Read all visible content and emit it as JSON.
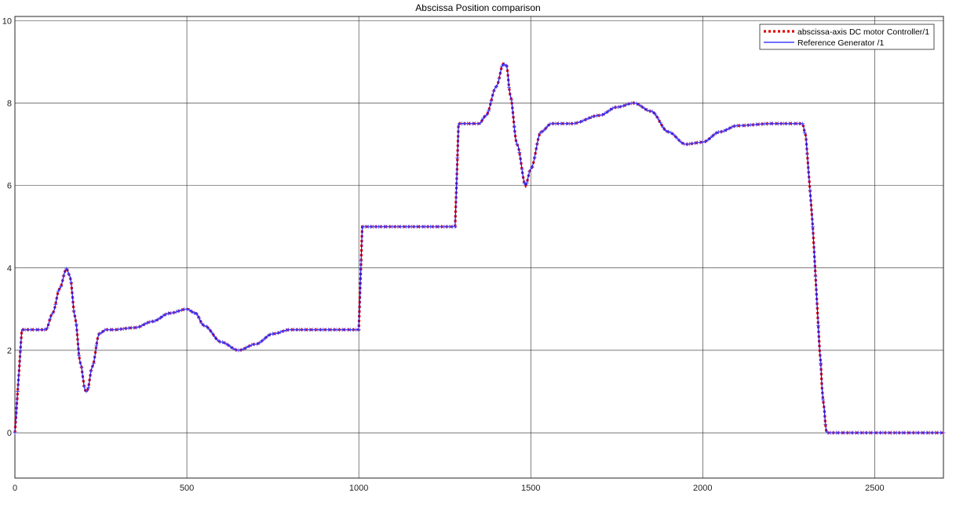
{
  "chart_data": {
    "type": "line",
    "title": "Abscissa Position comparison",
    "xlabel": "",
    "ylabel": "",
    "xlim": [
      0,
      2700
    ],
    "ylim": [
      -1.1,
      10.1
    ],
    "x_ticks": [
      0,
      500,
      1000,
      1500,
      2000,
      2500
    ],
    "y_ticks": [
      0,
      2,
      4,
      6,
      8,
      10
    ],
    "grid": true,
    "legend_position": "top-right",
    "series": [
      {
        "name": "abscissa-axis DC motor Controller/1",
        "style": "dotted",
        "color": "#e00000",
        "marker": "none",
        "x": [
          0,
          20,
          30,
          90,
          110,
          130,
          150,
          160,
          175,
          190,
          205,
          210,
          225,
          245,
          265,
          285,
          350,
          400,
          450,
          500,
          525,
          550,
          600,
          650,
          700,
          750,
          800,
          850,
          900,
          1000,
          1010,
          1020,
          1050,
          1280,
          1290,
          1300,
          1350,
          1370,
          1400,
          1420,
          1430,
          1440,
          1460,
          1485,
          1500,
          1530,
          1560,
          1620,
          1700,
          1750,
          1800,
          1850,
          1900,
          1950,
          2000,
          2050,
          2100,
          2200,
          2290,
          2300,
          2320,
          2340,
          2350,
          2360,
          2400,
          2700
        ],
        "y": [
          0,
          2.5,
          2.5,
          2.5,
          2.9,
          3.5,
          3.98,
          3.8,
          2.8,
          1.7,
          1.02,
          1.0,
          1.6,
          2.4,
          2.5,
          2.5,
          2.55,
          2.7,
          2.9,
          3.0,
          2.9,
          2.6,
          2.2,
          2.0,
          2.15,
          2.4,
          2.5,
          2.5,
          2.5,
          2.5,
          5.0,
          5.0,
          5.0,
          5.0,
          7.5,
          7.5,
          7.5,
          7.7,
          8.4,
          8.95,
          8.9,
          8.2,
          7.0,
          6.0,
          6.4,
          7.3,
          7.5,
          7.5,
          7.7,
          7.9,
          8.0,
          7.8,
          7.3,
          7.0,
          7.05,
          7.3,
          7.45,
          7.5,
          7.5,
          7.2,
          5.0,
          2.0,
          0.8,
          0.0,
          0.0,
          0.0
        ]
      },
      {
        "name": "Reference Generator /1",
        "style": "solid",
        "color": "#1a1aff",
        "marker": "plus",
        "x": [
          0,
          20,
          30,
          90,
          110,
          130,
          150,
          160,
          175,
          190,
          205,
          210,
          225,
          245,
          265,
          285,
          350,
          400,
          450,
          500,
          525,
          550,
          600,
          650,
          700,
          750,
          800,
          850,
          900,
          1000,
          1010,
          1020,
          1050,
          1280,
          1290,
          1300,
          1350,
          1370,
          1400,
          1420,
          1430,
          1440,
          1460,
          1485,
          1500,
          1530,
          1560,
          1620,
          1700,
          1750,
          1800,
          1850,
          1900,
          1950,
          2000,
          2050,
          2100,
          2200,
          2290,
          2300,
          2320,
          2340,
          2350,
          2360,
          2400,
          2700
        ],
        "y": [
          0,
          2.5,
          2.5,
          2.5,
          2.9,
          3.5,
          3.98,
          3.8,
          2.8,
          1.7,
          1.02,
          1.0,
          1.6,
          2.4,
          2.5,
          2.5,
          2.55,
          2.7,
          2.9,
          3.0,
          2.9,
          2.6,
          2.2,
          2.0,
          2.15,
          2.4,
          2.5,
          2.5,
          2.5,
          2.5,
          5.0,
          5.0,
          5.0,
          5.0,
          7.5,
          7.5,
          7.5,
          7.7,
          8.4,
          8.95,
          8.9,
          8.2,
          7.0,
          6.0,
          6.4,
          7.3,
          7.5,
          7.5,
          7.7,
          7.9,
          8.0,
          7.8,
          7.3,
          7.0,
          7.05,
          7.3,
          7.45,
          7.5,
          7.5,
          7.2,
          5.0,
          2.0,
          0.8,
          0.0,
          0.0,
          0.0
        ]
      }
    ]
  }
}
